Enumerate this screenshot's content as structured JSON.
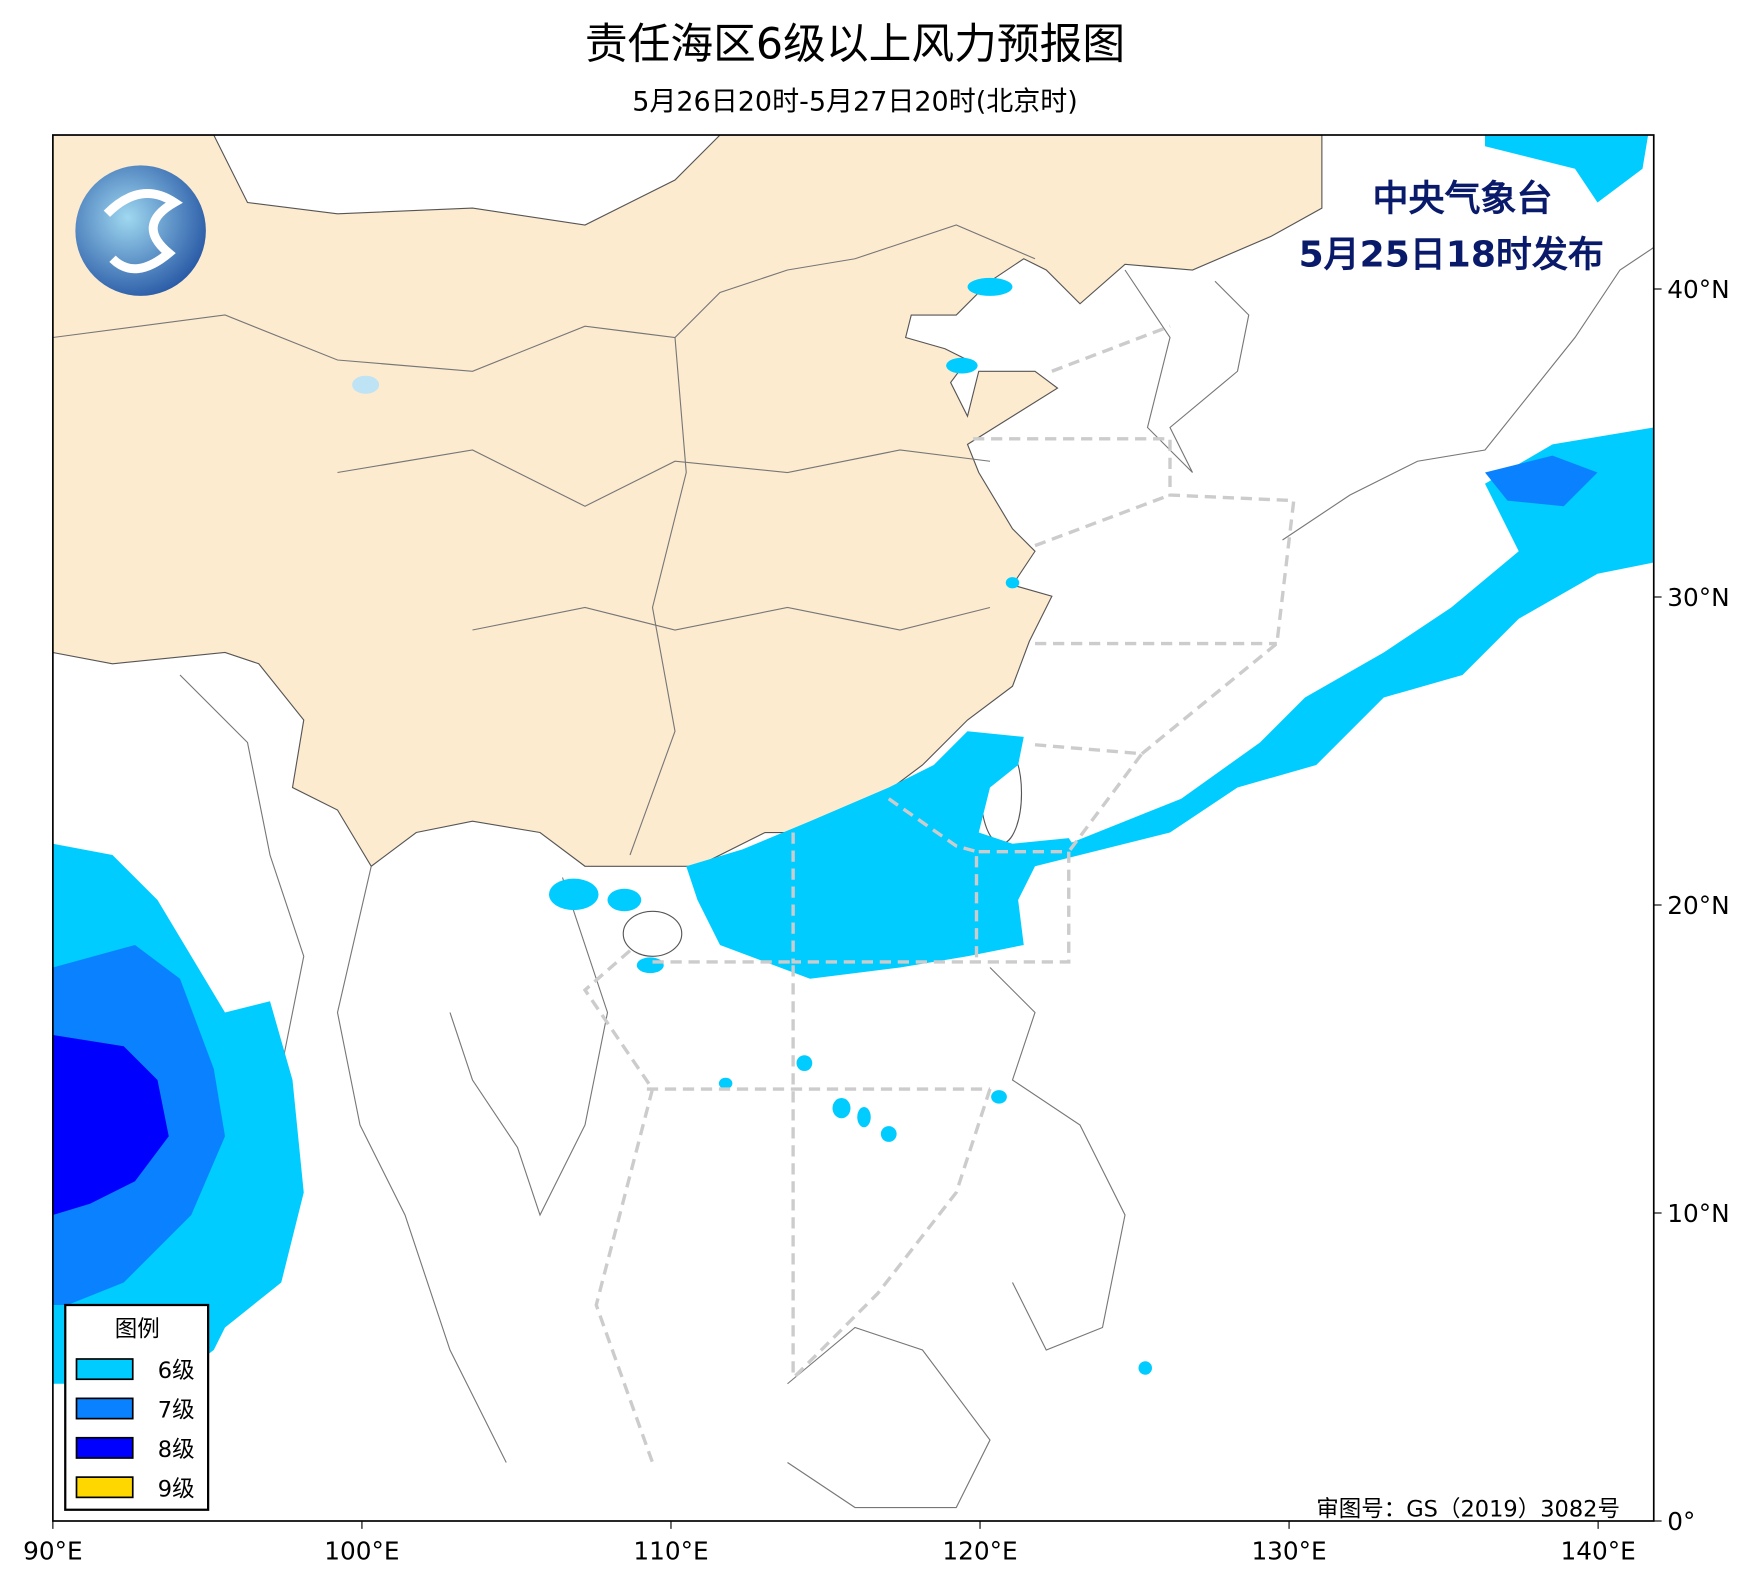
{
  "title": "责任海区6级以上风力预报图",
  "subtitle": "5月26日20时-5月27日20时(北京时)",
  "issuer": "中央气象台",
  "issue_time": "5月25日18时发布",
  "approval": "审图号：GS（2019）3082号",
  "map": {
    "xlim": [
      90,
      141.8
    ],
    "ylim": [
      0,
      45
    ],
    "xticks": [
      {
        "value": 90,
        "label": "90°E"
      },
      {
        "value": 100,
        "label": "100°E"
      },
      {
        "value": 110,
        "label": "110°E"
      },
      {
        "value": 120,
        "label": "120°E"
      },
      {
        "value": 130,
        "label": "130°E"
      },
      {
        "value": 140,
        "label": "140°E"
      }
    ],
    "yticks": [
      {
        "value": 0,
        "label": "0°"
      },
      {
        "value": 10,
        "label": "10°N"
      },
      {
        "value": 20,
        "label": "20°N"
      },
      {
        "value": 30,
        "label": "30°N"
      },
      {
        "value": 40,
        "label": "40°N"
      }
    ]
  },
  "legend": {
    "title": "图例",
    "items": [
      {
        "label": "6级",
        "color": "#00ccff"
      },
      {
        "label": "7级",
        "color": "#0a82ff"
      },
      {
        "label": "8级",
        "color": "#0000ff"
      },
      {
        "label": "9级",
        "color": "#ffd700"
      }
    ]
  }
}
